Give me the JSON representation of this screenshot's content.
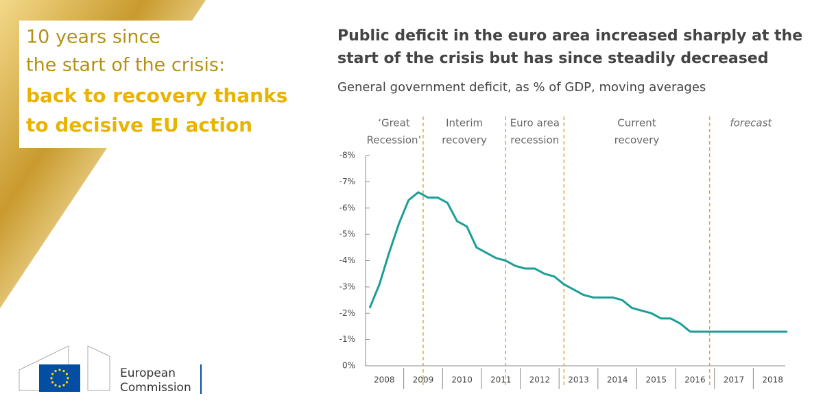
{
  "header": {
    "light_lines": [
      "10 years since",
      "the start of the crisis:"
    ],
    "bold_lines": [
      "back to recovery thanks",
      "to decisive EU action"
    ]
  },
  "logo": {
    "lines": [
      "European",
      "Commission"
    ]
  },
  "chart_data": {
    "type": "line",
    "title": [
      "Public deficit in the euro area increased sharply at the",
      "start of the crisis but has since steadily decreased"
    ],
    "subtitle": "General government deficit, as % of GDP, moving averages",
    "periods": [
      {
        "label": [
          "‘Great",
          "Recession’"
        ]
      },
      {
        "label": [
          "Interim",
          "recovery"
        ]
      },
      {
        "label": [
          "Euro area",
          "recession"
        ]
      },
      {
        "label": [
          "Current",
          "recovery"
        ]
      },
      {
        "label": [
          "forecast"
        ]
      }
    ],
    "period_breaks": [
      2009.5,
      2011.625,
      2013.125,
      2016.875
    ],
    "x": [
      2008.125,
      2008.375,
      2008.625,
      2008.875,
      2009.125,
      2009.375,
      2009.625,
      2009.875,
      2010.125,
      2010.375,
      2010.625,
      2010.875,
      2011.125,
      2011.375,
      2011.625,
      2011.875,
      2012.125,
      2012.375,
      2012.625,
      2012.875,
      2013.125,
      2013.375,
      2013.625,
      2013.875,
      2014.125,
      2014.375,
      2014.625,
      2014.875,
      2015.125,
      2015.375,
      2015.625,
      2015.875,
      2016.125,
      2016.375,
      2016.625,
      2016.875,
      2017.125,
      2017.375,
      2017.625,
      2017.875,
      2018.125,
      2018.375,
      2018.625,
      2018.875
    ],
    "series": [
      {
        "color": "#1a9e96",
        "values": [
          -2.2,
          -3.1,
          -4.3,
          -5.4,
          -6.3,
          -6.6,
          -6.4,
          -6.4,
          -6.2,
          -5.5,
          -5.3,
          -4.5,
          -4.3,
          -4.1,
          -4.0,
          -3.8,
          -3.7,
          -3.7,
          -3.5,
          -3.4,
          -3.1,
          -2.9,
          -2.7,
          -2.6,
          -2.6,
          -2.6,
          -2.5,
          -2.2,
          -2.1,
          -2.0,
          -1.8,
          -1.8,
          -1.6,
          -1.3,
          -1.3,
          -1.3,
          -1.3,
          -1.3,
          -1.3,
          -1.3,
          -1.3,
          -1.3,
          -1.3,
          -1.3
        ]
      }
    ],
    "xlim": [
      2008,
      2019
    ],
    "xticks": [
      {
        "value": 2008.5,
        "label": "2008"
      },
      {
        "value": 2009.5,
        "label": "2009"
      },
      {
        "value": 2010.5,
        "label": "2010"
      },
      {
        "value": 2011.5,
        "label": "2011"
      },
      {
        "value": 2012.5,
        "label": "2012"
      },
      {
        "value": 2013.5,
        "label": "2013"
      },
      {
        "value": 2014.5,
        "label": "2014"
      },
      {
        "value": 2015.5,
        "label": "2015"
      },
      {
        "value": 2016.5,
        "label": "2016"
      },
      {
        "value": 2017.5,
        "label": "2017"
      },
      {
        "value": 2018.5,
        "label": "2018"
      }
    ],
    "ylim": [
      0,
      -8
    ],
    "yticks": [
      {
        "value": 0,
        "label": "0%"
      },
      {
        "value": -1,
        "label": "-1%"
      },
      {
        "value": -2,
        "label": "-2%"
      },
      {
        "value": -3,
        "label": "-3%"
      },
      {
        "value": -4,
        "label": "-4%"
      },
      {
        "value": -5,
        "label": "-5%"
      },
      {
        "value": -6,
        "label": "-6%"
      },
      {
        "value": -7,
        "label": "-7%"
      },
      {
        "value": -8,
        "label": "-8%"
      }
    ]
  }
}
